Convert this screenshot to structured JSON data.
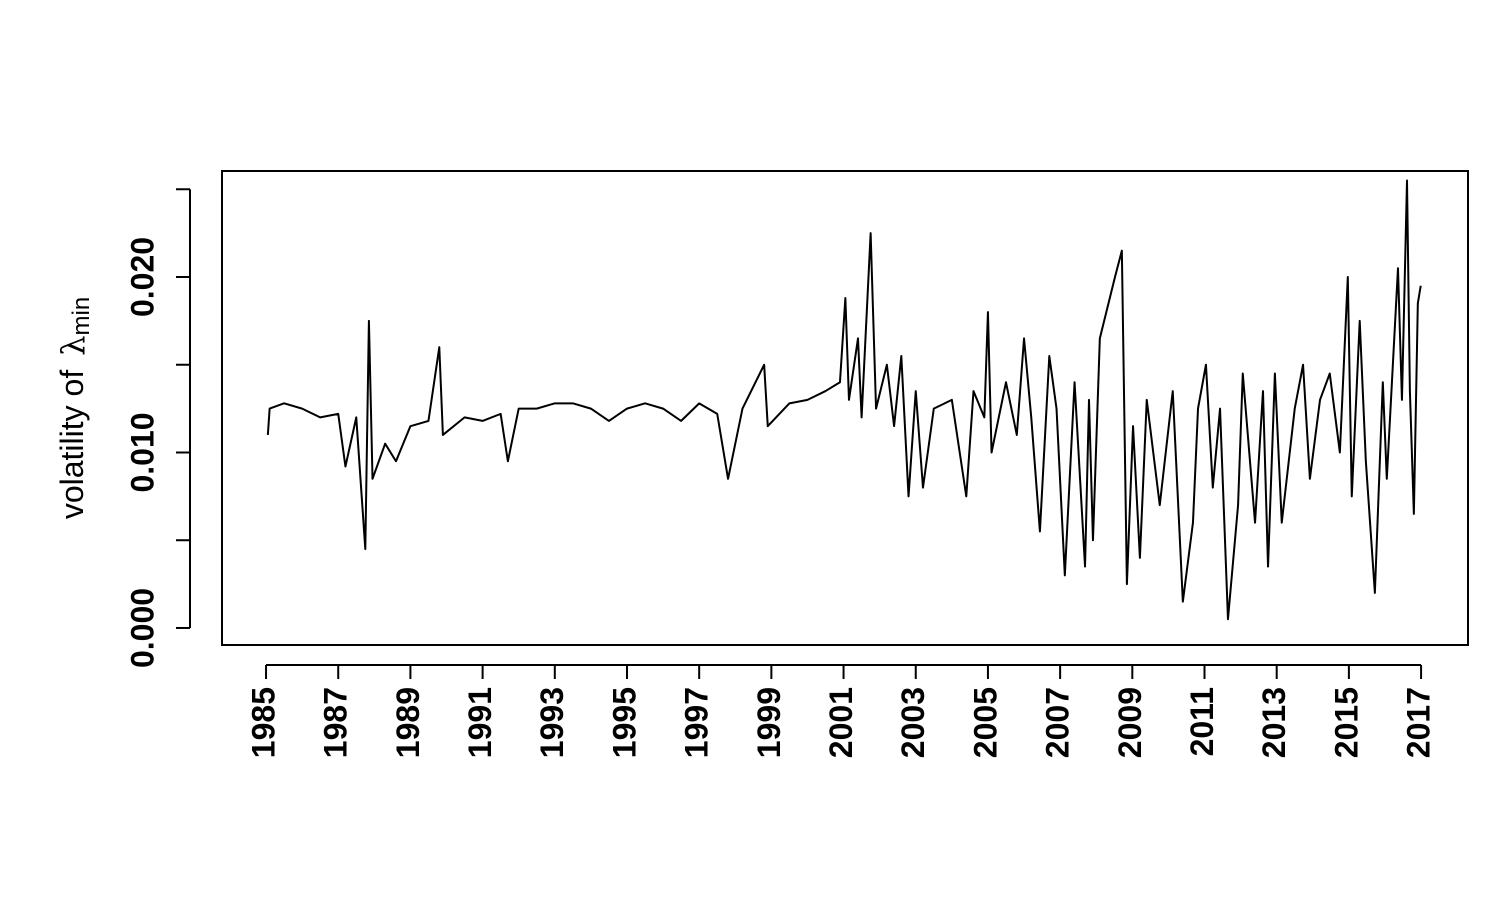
{
  "chart_data": {
    "type": "line",
    "ylabel": "volatility of",
    "ylabel_symbol": "λ",
    "ylabel_subscript": "min",
    "series": [
      {
        "color": "#000000",
        "x": [
          1985.05,
          1985.1,
          1985.5,
          1986.0,
          1986.5,
          1987.0,
          1987.2,
          1987.5,
          1987.75,
          1987.85,
          1987.95,
          1988.3,
          1988.6,
          1989.0,
          1989.5,
          1989.8,
          1989.9,
          1990.5,
          1991.0,
          1991.5,
          1991.7,
          1992.0,
          1992.5,
          1993.0,
          1993.5,
          1994.0,
          1994.5,
          1995.0,
          1995.5,
          1996.0,
          1996.5,
          1997.0,
          1997.5,
          1997.8,
          1998.2,
          1998.8,
          1998.9,
          1999.5,
          2000.0,
          2000.5,
          2000.9,
          2001.05,
          2001.15,
          2001.4,
          2001.5,
          2001.75,
          2001.9,
          2002.2,
          2002.4,
          2002.6,
          2002.8,
          2003.0,
          2003.2,
          2003.5,
          2004.0,
          2004.4,
          2004.6,
          2004.9,
          2005.0,
          2005.1,
          2005.5,
          2005.8,
          2006.0,
          2006.2,
          2006.44,
          2006.7,
          2006.9,
          2007.13,
          2007.4,
          2007.69,
          2007.8,
          2007.91,
          2008.1,
          2008.52,
          2008.71,
          2008.85,
          2009.02,
          2009.21,
          2009.4,
          2009.76,
          2010.12,
          2010.4,
          2010.68,
          2010.82,
          2011.04,
          2011.23,
          2011.43,
          2011.65,
          2011.93,
          2012.06,
          2012.4,
          2012.62,
          2012.76,
          2012.95,
          2013.14,
          2013.5,
          2013.73,
          2013.92,
          2014.2,
          2014.47,
          2014.75,
          2014.97,
          2015.08,
          2015.3,
          2015.47,
          2015.72,
          2015.94,
          2016.05,
          2016.36,
          2016.47,
          2016.61,
          2016.69,
          2016.8,
          2016.91,
          2016.99
        ],
        "values": [
          0.011,
          0.0125,
          0.0128,
          0.0125,
          0.012,
          0.0122,
          0.0092,
          0.012,
          0.0045,
          0.0175,
          0.0085,
          0.0105,
          0.0095,
          0.0115,
          0.0118,
          0.016,
          0.011,
          0.012,
          0.0118,
          0.0122,
          0.0095,
          0.0125,
          0.0125,
          0.0128,
          0.0128,
          0.0125,
          0.0118,
          0.0125,
          0.0128,
          0.0125,
          0.0118,
          0.0128,
          0.0122,
          0.0085,
          0.0125,
          0.015,
          0.0115,
          0.0128,
          0.013,
          0.0135,
          0.014,
          0.0188,
          0.013,
          0.0165,
          0.012,
          0.0225,
          0.0125,
          0.015,
          0.0115,
          0.0155,
          0.0075,
          0.0135,
          0.008,
          0.0125,
          0.013,
          0.0075,
          0.0135,
          0.012,
          0.018,
          0.01,
          0.014,
          0.011,
          0.0165,
          0.012,
          0.0055,
          0.0155,
          0.0125,
          0.003,
          0.014,
          0.0035,
          0.013,
          0.005,
          0.0165,
          0.02,
          0.0215,
          0.0025,
          0.0115,
          0.004,
          0.013,
          0.007,
          0.0135,
          0.0015,
          0.006,
          0.0125,
          0.015,
          0.008,
          0.0125,
          0.0005,
          0.007,
          0.0145,
          0.006,
          0.0135,
          0.0035,
          0.0145,
          0.006,
          0.0125,
          0.015,
          0.0085,
          0.013,
          0.0145,
          0.01,
          0.02,
          0.0075,
          0.0175,
          0.0095,
          0.002,
          0.014,
          0.0085,
          0.0205,
          0.013,
          0.0255,
          0.0135,
          0.0065,
          0.0185,
          0.0195
        ]
      }
    ],
    "xlim": [
      1983.78,
      2018.3
    ],
    "xticks": [
      1985,
      1987,
      1989,
      1991,
      1993,
      1995,
      1997,
      1999,
      2001,
      2003,
      2005,
      2007,
      2009,
      2011,
      2013,
      2015,
      2017
    ],
    "ylim": [
      -0.00097,
      0.02604
    ],
    "yticks": [
      {
        "value": 0,
        "label": "0.000"
      },
      {
        "value": 0.005,
        "label": null
      },
      {
        "value": 0.01,
        "label": "0.010"
      },
      {
        "value": 0.015,
        "label": null
      },
      {
        "value": 0.02,
        "label": "0.020"
      },
      {
        "value": 0.025,
        "label": null
      }
    ]
  }
}
